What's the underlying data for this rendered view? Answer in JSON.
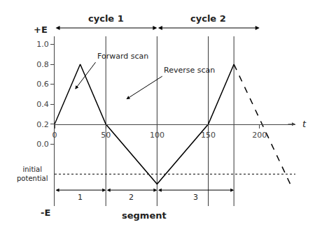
{
  "chart_data": {
    "type": "line",
    "series": [
      {
        "x": [
          0,
          25,
          50,
          100,
          150,
          175
        ],
        "values": [
          0.2,
          0.8,
          0.2,
          -0.4,
          0.2,
          0.8
        ],
        "color": "black",
        "line_style": "solid"
      },
      {
        "x": [
          175,
          230
        ],
        "values": [
          0.8,
          -0.4
        ],
        "color": "black",
        "line_style": "dashed"
      }
    ],
    "xlim": [
      0,
      235
    ],
    "xticks": [
      0,
      50,
      100,
      150,
      200
    ],
    "ylim": [
      -0.62,
      1.08
    ],
    "yticks": [
      {
        "value": 0.0,
        "label": "0.0"
      },
      0.2,
      0.4,
      0.6,
      0.8,
      {
        "value": 1.0,
        "label": "1.0"
      }
    ],
    "grid": false,
    "x_label": "t",
    "y_top_label": "+E",
    "y_bottom_label": "-E",
    "time_axis_y": 0.2,
    "reference_line": {
      "y": -0.3,
      "label": "initial\npotential",
      "line_style": "dotted",
      "color": "black"
    },
    "vlines_x": [
      50,
      100,
      150,
      175
    ],
    "cycles": [
      {
        "label": "cycle 1",
        "from": 0,
        "to": 100
      },
      {
        "label": "cycle 2",
        "from": 100,
        "to": 200
      }
    ],
    "segment_title": "segment",
    "segment_y": -0.46,
    "segments": [
      {
        "label": "1",
        "from": 0,
        "to": 50
      },
      {
        "label": "2",
        "from": 50,
        "to": 100
      },
      {
        "label": "3",
        "from": 100,
        "to": 175
      }
    ],
    "annotations": [
      {
        "text": "Forward scan",
        "x": 20,
        "y": 0.55,
        "text_x": 40,
        "text_y": 0.82
      },
      {
        "text": "Reverse scan",
        "x": 70,
        "y": 0.45,
        "text_x": 105,
        "text_y": 0.68
      }
    ]
  }
}
